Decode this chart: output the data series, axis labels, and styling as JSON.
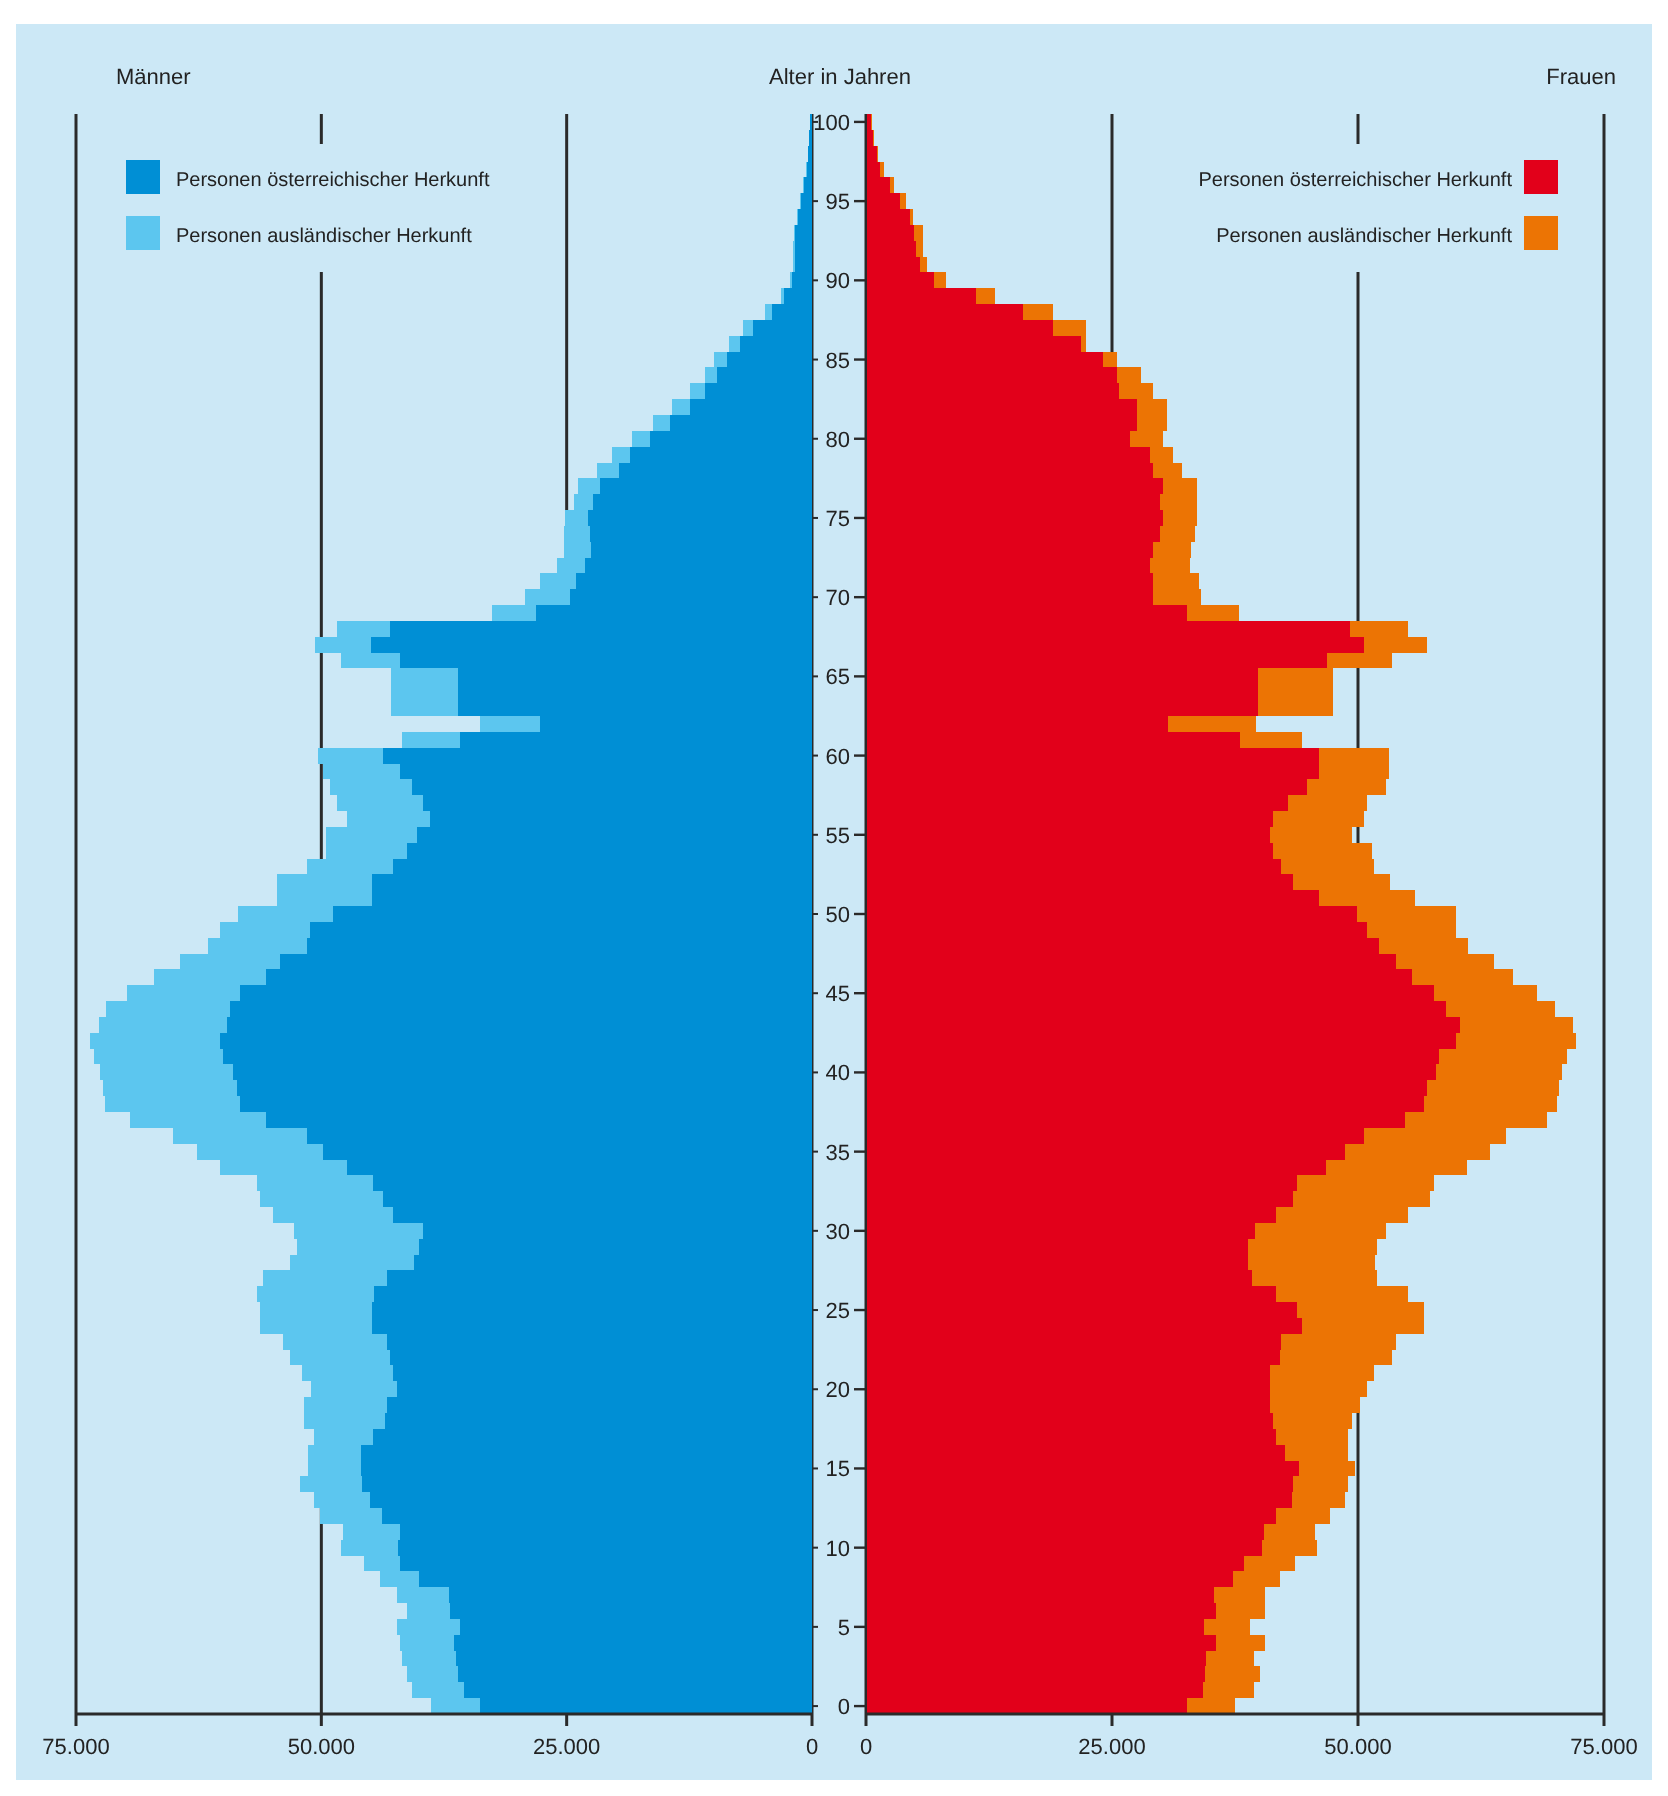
{
  "chart_data": [
    {
      "type": "bar",
      "orientation": "horizontal",
      "stacked": true,
      "title": "Männer",
      "categories": [
        "100",
        null,
        null,
        null,
        null,
        "95",
        null,
        null,
        null,
        null,
        "90",
        null,
        null,
        null,
        null,
        "85",
        null,
        null,
        null,
        null,
        "80",
        null,
        null,
        null,
        null,
        "75",
        null,
        null,
        null,
        null,
        "70",
        null,
        null,
        null,
        null,
        "65",
        null,
        null,
        null,
        null,
        "60",
        null,
        null,
        null,
        null,
        "55",
        null,
        null,
        null,
        null,
        "50",
        null,
        null,
        null,
        null,
        "45",
        null,
        null,
        null,
        null,
        "40",
        null,
        null,
        null,
        null,
        "35",
        null,
        null,
        null,
        null,
        "30",
        null,
        null,
        null,
        null,
        "25",
        null,
        null,
        null,
        null,
        "20",
        null,
        null,
        null,
        null,
        "15",
        null,
        null,
        null,
        null,
        "10",
        null,
        null,
        null,
        null,
        "5",
        null,
        null,
        null,
        null,
        "0"
      ],
      "xlim": [
        75000,
        0
      ],
      "xticks": [
        {
          "value": 75000,
          "label": "75.000"
        },
        {
          "value": 50000,
          "label": "50.000"
        },
        {
          "value": 25000,
          "label": "25.000"
        },
        0
      ],
      "grid": "x",
      "legend": "top left",
      "tick_labels": "x",
      "series": [
        {
          "name": "Personen österreichischer Herkunft",
          "color": "#008fd5",
          "values": [
            200,
            300,
            400,
            500,
            800,
            1100,
            1400,
            1700,
            1700,
            1700,
            2000,
            2900,
            4100,
            6000,
            7300,
            8700,
            9700,
            10900,
            12400,
            14500,
            16500,
            18500,
            19700,
            21600,
            22300,
            22800,
            22600,
            22500,
            23100,
            24000,
            24700,
            28100,
            43000,
            44900,
            42000,
            36100,
            36100,
            36100,
            27700,
            35900,
            43700,
            42000,
            40800,
            39600,
            38900,
            40300,
            41300,
            42700,
            44800,
            44800,
            48800,
            51200,
            51500,
            54200,
            55600,
            58300,
            59300,
            59600,
            60300,
            60000,
            59000,
            58600,
            58300,
            55600,
            51500,
            49800,
            47400,
            44700,
            43700,
            42700,
            39600,
            40000,
            40600,
            43300,
            44600,
            44800,
            44800,
            43300,
            43000,
            42700,
            42300,
            43300,
            43500,
            44700,
            46000,
            46000,
            45900,
            45000,
            43800,
            42000,
            42200,
            42000,
            40000,
            37000,
            36900,
            35900,
            36500,
            36300,
            36100,
            35500,
            33800
          ]
        },
        {
          "name": "Personen ausländischer Herkunft",
          "color": "#5cc6ef",
          "values": [
            0,
            0,
            0,
            100,
            100,
            100,
            100,
            100,
            200,
            200,
            200,
            300,
            700,
            1000,
            1200,
            1300,
            1200,
            1500,
            1900,
            1700,
            1800,
            1900,
            2200,
            2200,
            2000,
            2400,
            2700,
            2800,
            2900,
            3700,
            4500,
            4500,
            5400,
            5700,
            6000,
            6800,
            6800,
            6800,
            6100,
            5900,
            6600,
            7800,
            8300,
            8800,
            8500,
            9200,
            8200,
            8800,
            9700,
            9700,
            9700,
            9100,
            10000,
            10200,
            11500,
            11500,
            12600,
            13100,
            13300,
            13200,
            13600,
            13600,
            13700,
            13900,
            13600,
            12900,
            12900,
            11900,
            12500,
            12200,
            13200,
            12500,
            12600,
            12600,
            12000,
            11400,
            11400,
            10600,
            10200,
            9300,
            8800,
            8500,
            8300,
            6000,
            5400,
            5400,
            6300,
            5700,
            6300,
            5800,
            5800,
            3700,
            4000,
            5300,
            4400,
            6400,
            5500,
            5500,
            5200,
            5300,
            5000
          ]
        }
      ]
    },
    {
      "type": "bar",
      "orientation": "horizontal",
      "stacked": true,
      "title": "Frauen",
      "ylabel": "Alter in Jahren",
      "categories": [
        "100",
        null,
        null,
        null,
        null,
        "95",
        null,
        null,
        null,
        null,
        "90",
        null,
        null,
        null,
        null,
        "85",
        null,
        null,
        null,
        null,
        "80",
        null,
        null,
        null,
        null,
        "75",
        null,
        null,
        null,
        null,
        "70",
        null,
        null,
        null,
        null,
        "65",
        null,
        null,
        null,
        null,
        "60",
        null,
        null,
        null,
        null,
        "55",
        null,
        null,
        null,
        null,
        "50",
        null,
        null,
        null,
        null,
        "45",
        null,
        null,
        null,
        null,
        "40",
        null,
        null,
        null,
        null,
        "35",
        null,
        null,
        null,
        null,
        "30",
        null,
        null,
        null,
        null,
        "25",
        null,
        null,
        null,
        null,
        "20",
        null,
        null,
        null,
        null,
        "15",
        null,
        null,
        null,
        null,
        "10",
        null,
        null,
        null,
        null,
        "5",
        null,
        null,
        null,
        null,
        "0"
      ],
      "xlim": [
        0,
        75000
      ],
      "xticks": [
        0,
        {
          "value": 25000,
          "label": "25.000"
        },
        {
          "value": 50000,
          "label": "50.000"
        },
        {
          "value": 75000,
          "label": "75.000"
        }
      ],
      "grid": "x",
      "legend": "top right",
      "series": [
        {
          "name": "Personen österreichischer Herkunft",
          "color": "#e2001a",
          "values": [
            500,
            700,
            1100,
            1400,
            2400,
            3500,
            4500,
            4900,
            5100,
            5500,
            6900,
            11200,
            16000,
            19000,
            21800,
            24100,
            25500,
            25700,
            27500,
            27500,
            26800,
            28900,
            29200,
            30200,
            29900,
            30200,
            29900,
            29200,
            28900,
            29200,
            29200,
            32600,
            49200,
            50600,
            46800,
            39800,
            39800,
            39800,
            30700,
            38000,
            46000,
            46000,
            44800,
            42900,
            41400,
            41100,
            41400,
            42200,
            43400,
            46000,
            49900,
            50900,
            52100,
            53900,
            55500,
            57700,
            58900,
            60400,
            60000,
            58200,
            57900,
            57000,
            56700,
            54800,
            50600,
            48700,
            46700,
            43800,
            43400,
            41700,
            39500,
            38800,
            38800,
            39200,
            41700,
            43800,
            44300,
            42200,
            42100,
            41100,
            41100,
            41100,
            41400,
            41700,
            42600,
            44000,
            43400,
            43300,
            41700,
            40400,
            40200,
            38400,
            37300,
            35400,
            35600,
            34300,
            35600,
            34600,
            34500,
            34200,
            32600
          ]
        },
        {
          "name": "Personen ausländischer Herkunft",
          "color": "#ec7404",
          "values": [
            100,
            100,
            100,
            400,
            400,
            600,
            300,
            900,
            700,
            700,
            1200,
            1900,
            3000,
            3400,
            600,
            1400,
            2400,
            3500,
            3100,
            3100,
            3400,
            2300,
            2900,
            3400,
            3700,
            3400,
            3500,
            3800,
            4000,
            4600,
            4800,
            5300,
            5900,
            6400,
            6700,
            7700,
            7700,
            7700,
            8900,
            6300,
            7100,
            7100,
            8000,
            8000,
            9200,
            8300,
            10000,
            9400,
            9900,
            9800,
            10100,
            9100,
            9100,
            9900,
            10300,
            10500,
            11100,
            11500,
            12200,
            13000,
            12800,
            13400,
            13500,
            14400,
            14400,
            14700,
            14400,
            13900,
            13900,
            13400,
            13300,
            13100,
            12900,
            12700,
            13400,
            12900,
            12400,
            11700,
            11400,
            10500,
            9800,
            9100,
            8000,
            7300,
            6400,
            5700,
            5600,
            5400,
            5500,
            5200,
            5600,
            5200,
            4800,
            5100,
            4900,
            4700,
            4900,
            4800,
            5500,
            5200,
            4900
          ]
        }
      ]
    }
  ]
}
